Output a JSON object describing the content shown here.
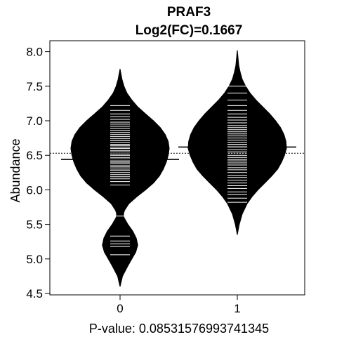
{
  "chart_data": {
    "type": "beanplot",
    "title": "PRAF3",
    "subtitle": "Log2(FC)=0.1667",
    "xlabel": "P-value: 0.08531576993741345",
    "ylabel": "Abundance",
    "ylim": [
      4.5,
      8.15
    ],
    "yticks": [
      4.5,
      5.0,
      5.5,
      6.0,
      6.5,
      7.0,
      7.5,
      8.0
    ],
    "ytick_labels": [
      "4.5",
      "5.0",
      "5.5",
      "6.0",
      "6.5",
      "7.0",
      "7.5",
      "8.0"
    ],
    "categories": [
      "0",
      "1"
    ],
    "overall_mean": 6.53,
    "groups": [
      {
        "name": "0",
        "mean": 6.44,
        "range": [
          4.6,
          7.75
        ],
        "density": [
          [
            4.6,
            0.0
          ],
          [
            4.75,
            0.05
          ],
          [
            4.9,
            0.16
          ],
          [
            5.0,
            0.24
          ],
          [
            5.1,
            0.32
          ],
          [
            5.2,
            0.36
          ],
          [
            5.3,
            0.33
          ],
          [
            5.4,
            0.26
          ],
          [
            5.5,
            0.16
          ],
          [
            5.6,
            0.08
          ],
          [
            5.65,
            0.07
          ],
          [
            5.7,
            0.09
          ],
          [
            5.8,
            0.18
          ],
          [
            5.9,
            0.34
          ],
          [
            6.0,
            0.52
          ],
          [
            6.1,
            0.68
          ],
          [
            6.2,
            0.8
          ],
          [
            6.3,
            0.88
          ],
          [
            6.4,
            0.94
          ],
          [
            6.5,
            0.98
          ],
          [
            6.6,
            1.0
          ],
          [
            6.7,
            0.98
          ],
          [
            6.8,
            0.92
          ],
          [
            6.9,
            0.82
          ],
          [
            7.0,
            0.68
          ],
          [
            7.1,
            0.52
          ],
          [
            7.2,
            0.36
          ],
          [
            7.3,
            0.24
          ],
          [
            7.4,
            0.14
          ],
          [
            7.5,
            0.08
          ],
          [
            7.6,
            0.04
          ],
          [
            7.75,
            0.0
          ]
        ],
        "values": [
          5.06,
          5.18,
          5.22,
          5.26,
          5.33,
          5.62,
          6.07,
          6.12,
          6.16,
          6.19,
          6.22,
          6.25,
          6.28,
          6.3,
          6.33,
          6.35,
          6.38,
          6.4,
          6.42,
          6.45,
          6.47,
          6.5,
          6.52,
          6.55,
          6.57,
          6.6,
          6.62,
          6.64,
          6.66,
          6.69,
          6.71,
          6.74,
          6.77,
          6.8,
          6.83,
          6.86,
          6.89,
          6.92,
          6.95,
          6.98,
          7.02,
          7.06,
          7.1,
          7.15,
          7.22
        ]
      },
      {
        "name": "1",
        "mean": 6.62,
        "range": [
          5.35,
          8.02
        ],
        "density": [
          [
            5.35,
            0.0
          ],
          [
            5.5,
            0.04
          ],
          [
            5.65,
            0.1
          ],
          [
            5.8,
            0.2
          ],
          [
            5.9,
            0.3
          ],
          [
            6.0,
            0.42
          ],
          [
            6.1,
            0.56
          ],
          [
            6.2,
            0.7
          ],
          [
            6.3,
            0.82
          ],
          [
            6.4,
            0.9
          ],
          [
            6.5,
            0.96
          ],
          [
            6.6,
            1.0
          ],
          [
            6.7,
            0.99
          ],
          [
            6.8,
            0.95
          ],
          [
            6.9,
            0.88
          ],
          [
            7.0,
            0.78
          ],
          [
            7.1,
            0.66
          ],
          [
            7.2,
            0.52
          ],
          [
            7.3,
            0.38
          ],
          [
            7.4,
            0.26
          ],
          [
            7.5,
            0.17
          ],
          [
            7.6,
            0.1
          ],
          [
            7.7,
            0.06
          ],
          [
            7.8,
            0.03
          ],
          [
            8.02,
            0.0
          ]
        ],
        "values": [
          5.82,
          5.88,
          5.93,
          5.97,
          6.02,
          6.06,
          6.1,
          6.14,
          6.18,
          6.21,
          6.25,
          6.29,
          6.32,
          6.36,
          6.39,
          6.42,
          6.44,
          6.47,
          6.5,
          6.53,
          6.55,
          6.58,
          6.61,
          6.63,
          6.66,
          6.69,
          6.72,
          6.75,
          6.78,
          6.81,
          6.84,
          6.87,
          6.9,
          6.93,
          6.97,
          7.01,
          7.05,
          7.1,
          7.15,
          7.22,
          7.3,
          7.4,
          7.5
        ]
      }
    ],
    "colors": {
      "bean": "#000000",
      "data_line": "#ffffff",
      "mean_line": "#000000",
      "background": "#ffffff"
    }
  }
}
